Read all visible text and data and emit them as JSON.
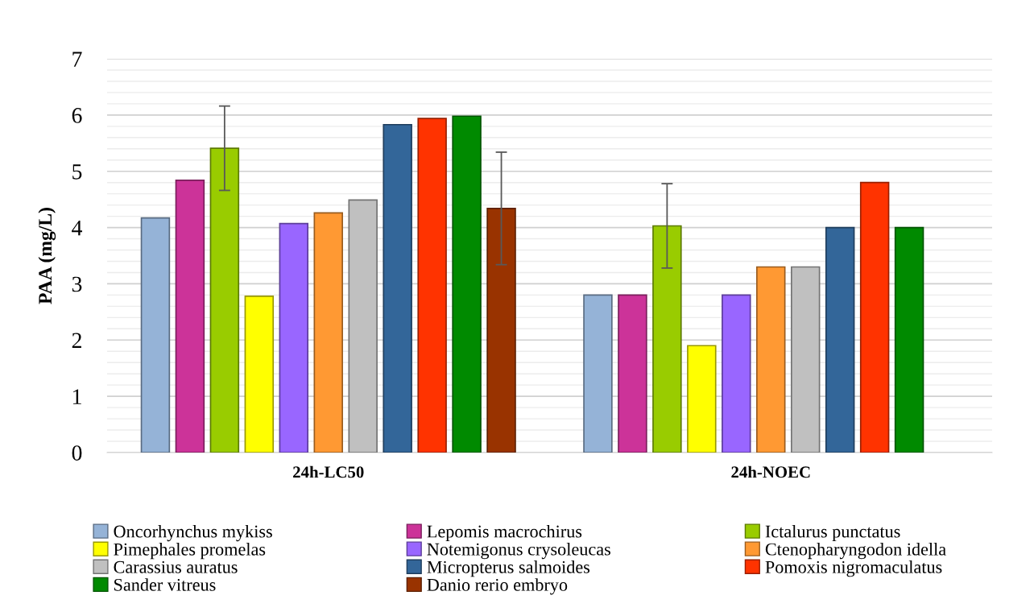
{
  "chart_data": {
    "type": "bar",
    "ylabel": "PAA (mg/L)",
    "categories": [
      "24h-LC50",
      "24h-NOEC"
    ],
    "series": [
      {
        "name": "Oncorhynchus mykiss",
        "color": "#95b3d7",
        "values": [
          4.17,
          2.8
        ]
      },
      {
        "name": "Lepomis macrochirus",
        "color": "#cc3399",
        "values": [
          4.84,
          2.8
        ]
      },
      {
        "name": "Ictalurus punctatus",
        "color": "#99cc00",
        "values": [
          5.41,
          4.03
        ],
        "errors": [
          0.75,
          0.75
        ]
      },
      {
        "name": "Pimephales promelas",
        "color": "#ffff00",
        "values": [
          2.78,
          1.9
        ]
      },
      {
        "name": "Notemigonus crysoleucas",
        "color": "#9966ff",
        "values": [
          4.07,
          2.8
        ]
      },
      {
        "name": "Ctenopharyngodon idella",
        "color": "#ff9933",
        "values": [
          4.26,
          3.3
        ]
      },
      {
        "name": "Carassius auratus",
        "color": "#c0c0c0",
        "values": [
          4.49,
          3.3
        ]
      },
      {
        "name": "Micropterus salmoides",
        "color": "#336699",
        "values": [
          5.83,
          4.0
        ]
      },
      {
        "name": "Pomoxis nigromaculatus",
        "color": "#ff3300",
        "values": [
          5.94,
          4.8
        ]
      },
      {
        "name": "Sander vitreus",
        "color": "#008a00",
        "values": [
          5.98,
          4.0
        ]
      },
      {
        "name": "Danio rerio embryo",
        "color": "#993300",
        "values": [
          4.34,
          null
        ],
        "errors": [
          1.0,
          null
        ]
      }
    ],
    "ylim": [
      0,
      7
    ],
    "yticks": [
      0,
      {
        "value": 0.2,
        "label": null
      },
      {
        "value": 0.4,
        "label": null
      },
      {
        "value": 0.6,
        "label": null
      },
      {
        "value": 0.8,
        "label": null
      },
      1,
      {
        "value": 1.2,
        "label": null
      },
      {
        "value": 1.4,
        "label": null
      },
      {
        "value": 1.6,
        "label": null
      },
      {
        "value": 1.8,
        "label": null
      },
      2,
      {
        "value": 2.2,
        "label": null
      },
      {
        "value": 2.4,
        "label": null
      },
      {
        "value": 2.6,
        "label": null
      },
      {
        "value": 2.8,
        "label": null
      },
      3,
      {
        "value": 3.2,
        "label": null
      },
      {
        "value": 3.4,
        "label": null
      },
      {
        "value": 3.6,
        "label": null
      },
      {
        "value": 3.8,
        "label": null
      },
      4,
      {
        "value": 4.2,
        "label": null
      },
      {
        "value": 4.4,
        "label": null
      },
      {
        "value": 4.6,
        "label": null
      },
      {
        "value": 4.8,
        "label": null
      },
      5,
      {
        "value": 5.2,
        "label": null
      },
      {
        "value": 5.4,
        "label": null
      },
      {
        "value": 5.6,
        "label": null
      },
      {
        "value": 5.8,
        "label": null
      },
      6,
      {
        "value": 6.2,
        "label": null
      },
      {
        "value": 6.4,
        "label": null
      },
      {
        "value": 6.6,
        "label": null
      },
      {
        "value": 6.8,
        "label": null
      },
      7
    ],
    "grid": "y",
    "legend": "bottom"
  }
}
